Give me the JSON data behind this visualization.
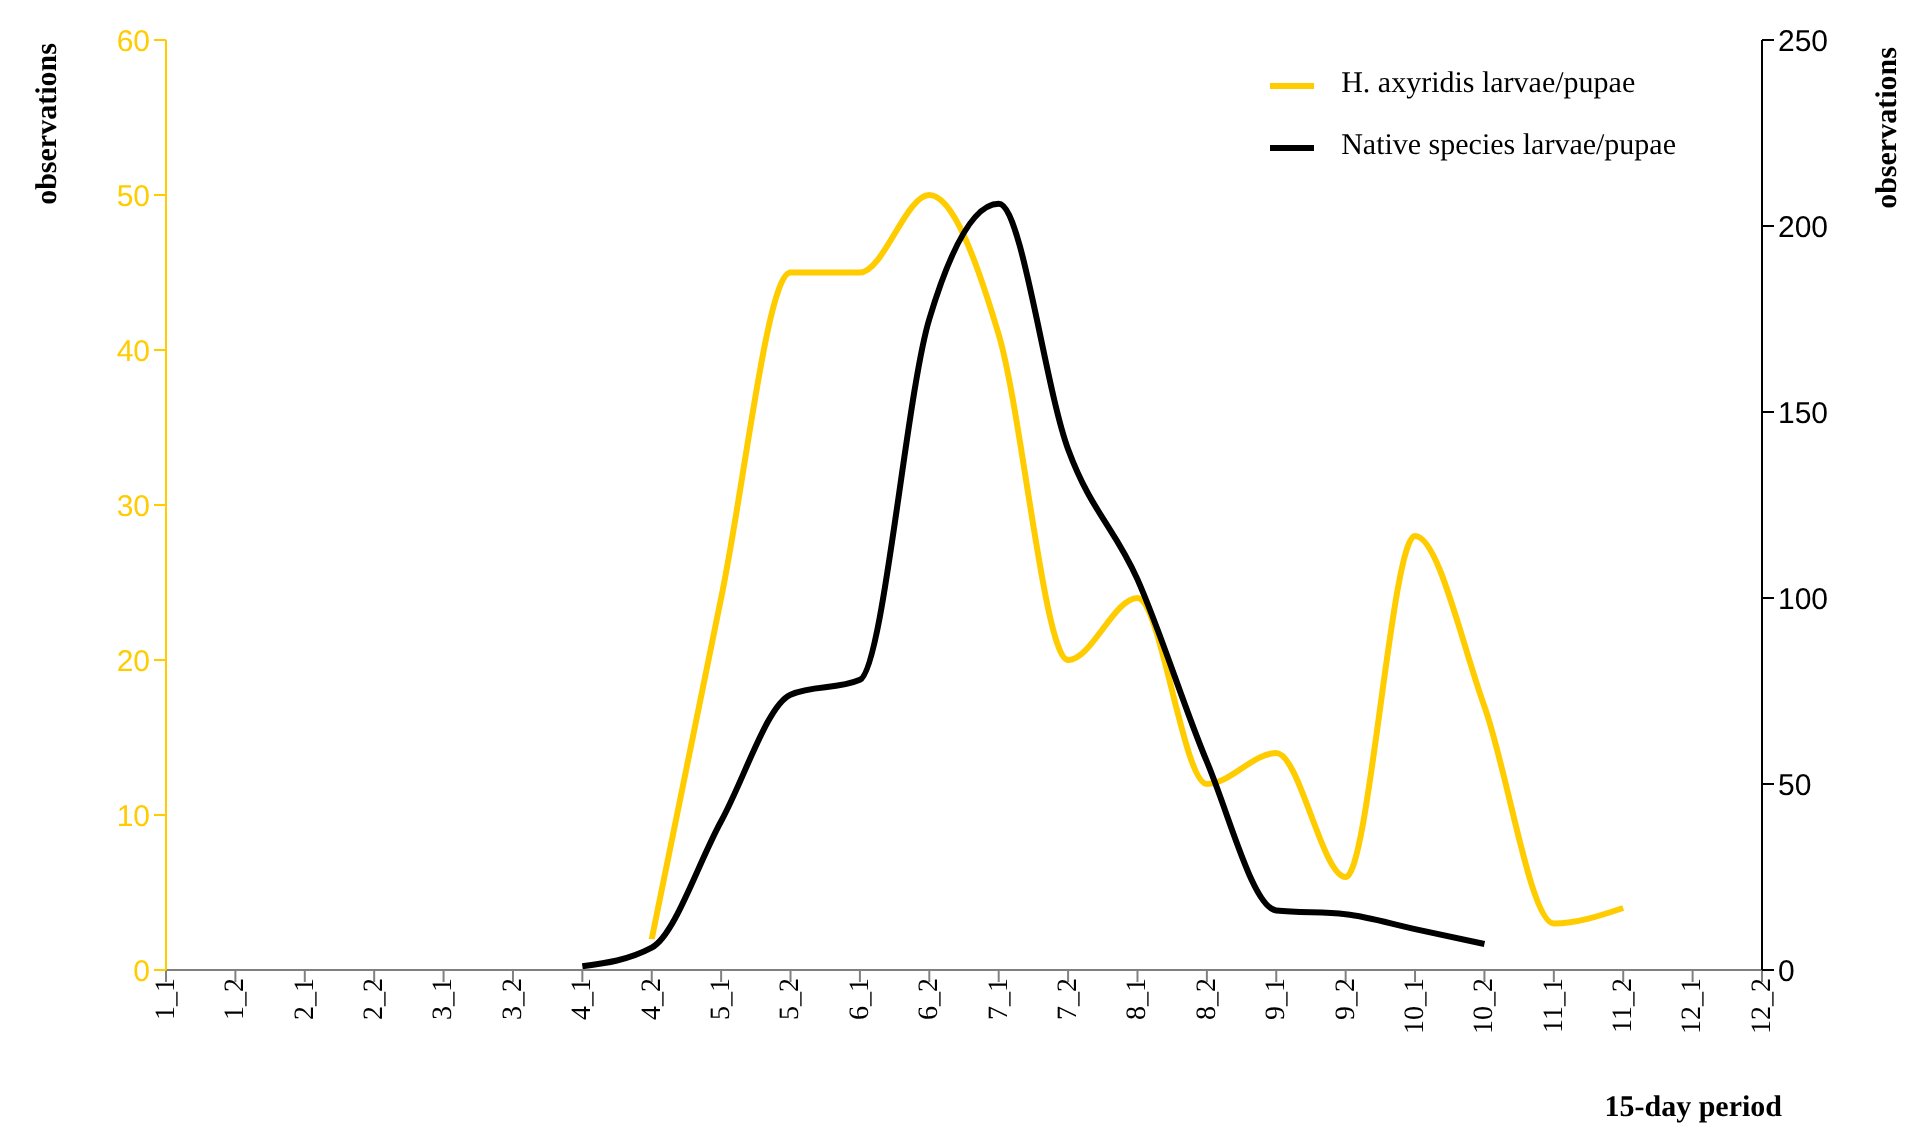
{
  "chart_data": {
    "type": "line",
    "categories": [
      "1_1",
      "1_2",
      "2_1",
      "2_2",
      "3_1",
      "3_2",
      "4_1",
      "4_2",
      "5_1",
      "5_2",
      "6_1",
      "6_2",
      "7_1",
      "7_2",
      "8_1",
      "8_2",
      "9_1",
      "9_2",
      "10_1",
      "10_2",
      "11_1",
      "11_2",
      "12_1",
      "12_2"
    ],
    "series": [
      {
        "name": "H. axyridis larvae/pupae",
        "color": "#ffcc00",
        "values": [
          null,
          null,
          null,
          null,
          null,
          null,
          null,
          2,
          24,
          45,
          45,
          50,
          41,
          20,
          24,
          12,
          14,
          6,
          28,
          17,
          3,
          4,
          null,
          null
        ]
      },
      {
        "name": "Native species larvae/pupae",
        "color": "#000000",
        "axis": "y2",
        "values": [
          null,
          null,
          null,
          null,
          null,
          null,
          1,
          6,
          40,
          74,
          78,
          175,
          206,
          140,
          105,
          56,
          16,
          15,
          11,
          7,
          null,
          null,
          null,
          null
        ]
      }
    ],
    "ylabel": "observations",
    "y2label": "observations",
    "xlabel": "15-day period",
    "ylim": [
      0,
      60
    ],
    "yticks": [
      0,
      10,
      20,
      30,
      40,
      50,
      60
    ],
    "y2lim": [
      0,
      250
    ],
    "y2ticks": [
      0,
      50,
      100,
      150,
      200,
      250
    ],
    "legend": "top right",
    "marker": "none",
    "line_style": "solid"
  }
}
